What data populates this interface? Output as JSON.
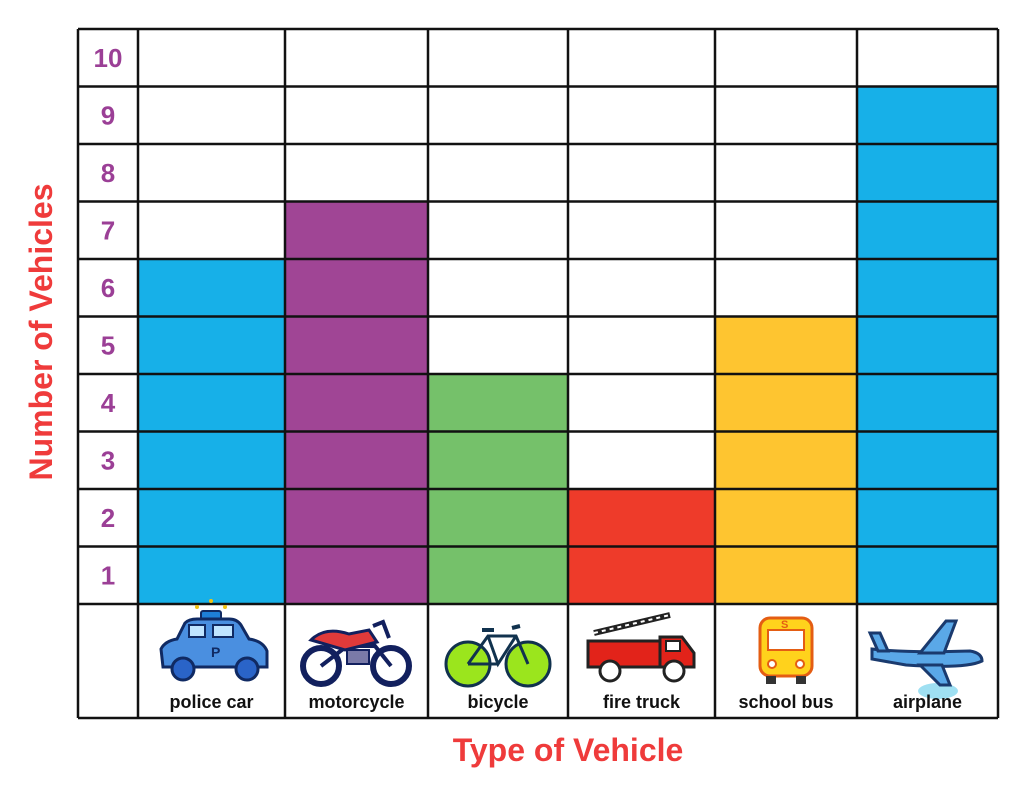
{
  "chart_data": {
    "type": "bar",
    "title": "",
    "xlabel": "Type of Vehicle",
    "ylabel": "Number of Vehicles",
    "ylim": [
      0,
      10
    ],
    "yticks": [
      "1",
      "2",
      "3",
      "4",
      "5",
      "6",
      "7",
      "8",
      "9",
      "10"
    ],
    "categories": [
      "police car",
      "motorcycle",
      "bicycle",
      "fire truck",
      "school bus",
      "airplane"
    ],
    "values": [
      6,
      7,
      4,
      2,
      5,
      9
    ],
    "bar_colors": [
      "#17b0e8",
      "#a04595",
      "#75c16a",
      "#ee3b2a",
      "#fec530",
      "#17b0e8"
    ],
    "grid": true,
    "icons": [
      "police-car-icon",
      "motorcycle-icon",
      "bicycle-icon",
      "fire-truck-icon",
      "school-bus-icon",
      "airplane-icon"
    ]
  }
}
